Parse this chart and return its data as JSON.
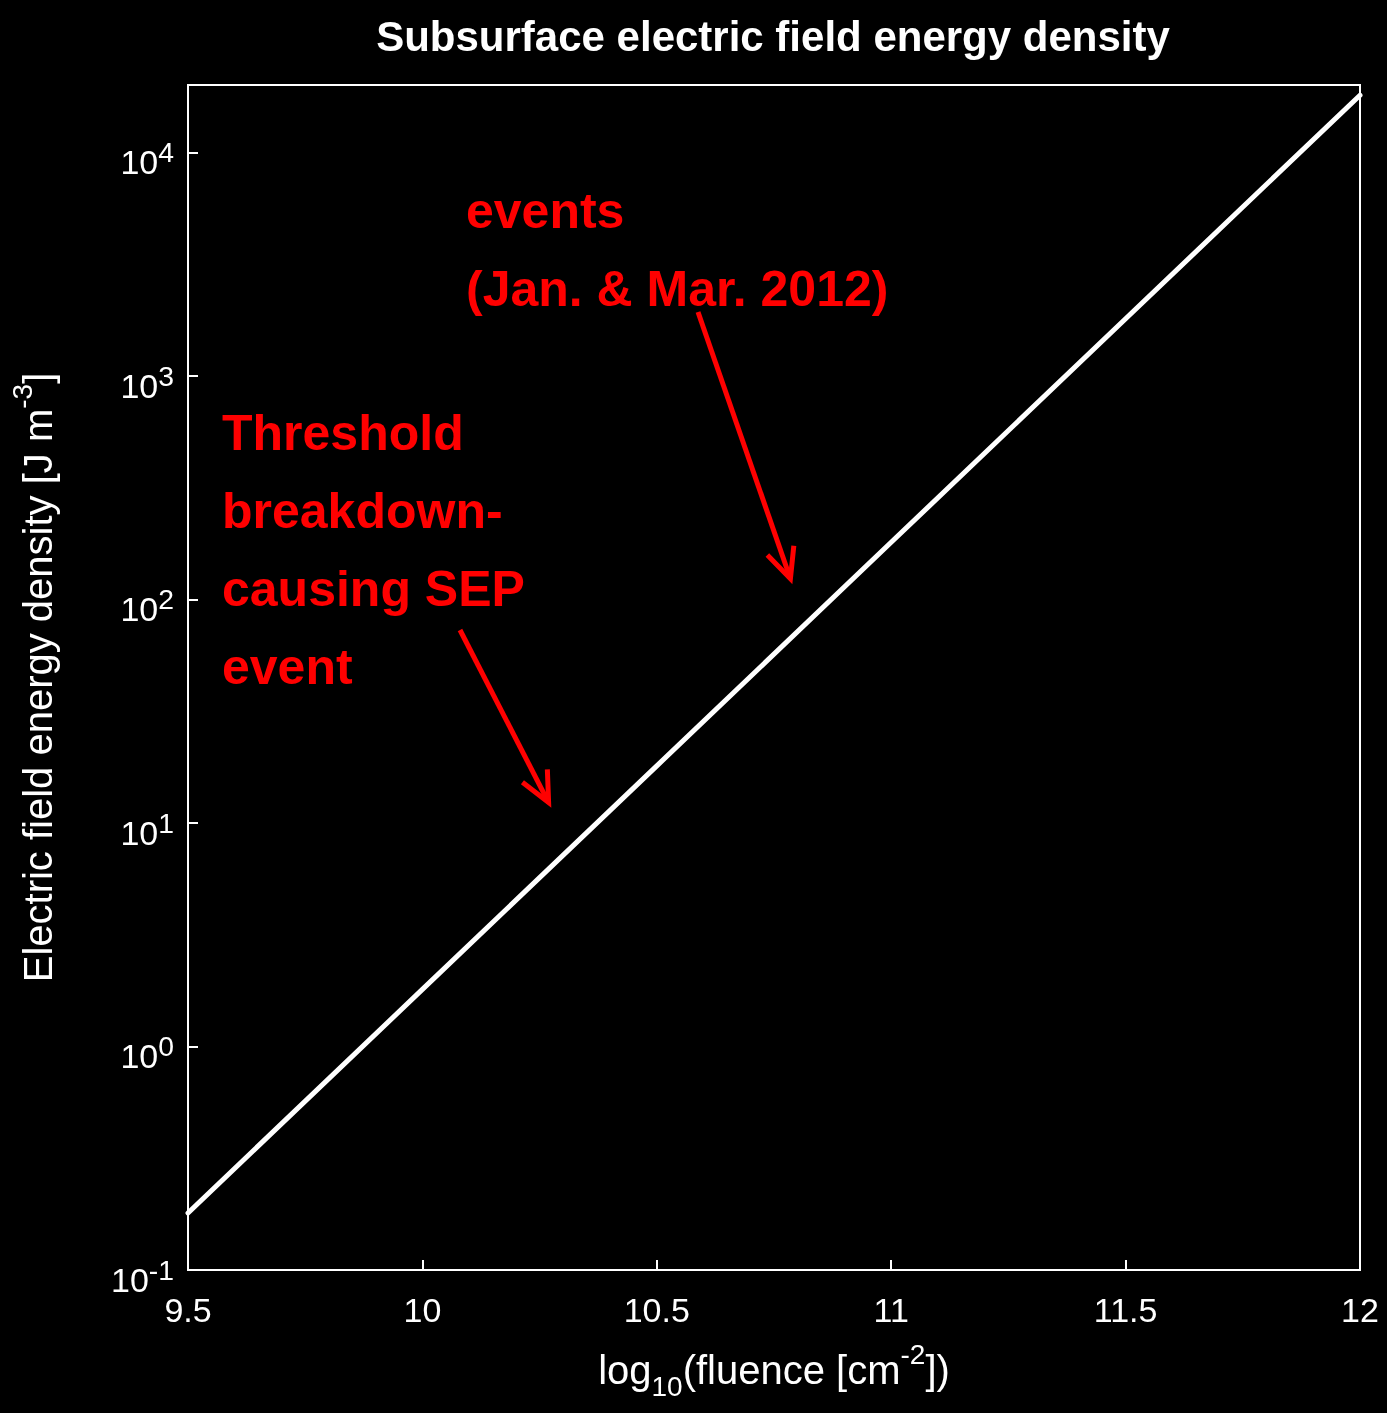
{
  "chart_data": {
    "type": "line",
    "title": "Subsurface electric field energy density",
    "xlabel": "log$_{10}$(fluence [cm$^{-2}$])",
    "ylabel": "Electric field energy density [J m$^{-3}$]",
    "x": [
      9.5,
      10,
      10.5,
      11,
      11.5,
      12
    ],
    "series": [
      {
        "color": "#ffffff",
        "values": [
          0.18,
          1.8,
          18,
          180,
          1800,
          18000
        ]
      }
    ],
    "log": "y",
    "xlim": [
      9.5,
      12
    ],
    "xticks": [
      9.5,
      10,
      10.5,
      11,
      11.5,
      12
    ],
    "ylim": [
      0.1,
      20000
    ],
    "yticks": [
      {
        "value": 0.1,
        "label": "10$^{-1}$"
      },
      {
        "value": 1,
        "label": "10$^{0}$"
      },
      {
        "value": 10,
        "label": "10$^{1}$"
      },
      {
        "value": 100,
        "label": "10$^{2}$"
      },
      {
        "value": 1000,
        "label": "10$^{3}$"
      },
      {
        "value": 10000,
        "label": "10$^{4}$"
      }
    ],
    "grid": false,
    "marker": "none",
    "line_style": "solid",
    "annotations": [
      "events\n(Jan. & Mar. 2012)",
      "Threshold\nbreakdown-\ncausing SEP\nevent"
    ]
  }
}
